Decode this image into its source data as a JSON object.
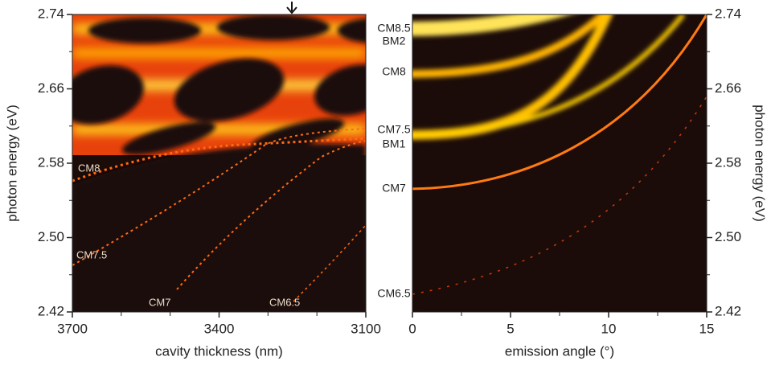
{
  "chart_data": [
    {
      "type": "heatmap",
      "xlabel": "cavity thickness (nm)",
      "ylabel": "photon energy (eV)",
      "xlim": [
        3700,
        3100
      ],
      "xticks": [
        3700,
        3400,
        3100
      ],
      "xminorticks": [
        3600,
        3500,
        3300,
        3200
      ],
      "ylim": [
        2.42,
        2.74
      ],
      "yticks": [
        2.42,
        {
          "value": 2.5,
          "label": "2.50"
        },
        2.58,
        2.66,
        2.74
      ],
      "yminorticks": [
        2.46,
        2.54,
        2.62,
        2.7
      ],
      "annotations": [
        "CM8",
        "CM7.5",
        "CM7",
        "CM6.5"
      ]
    },
    {
      "type": "heatmap",
      "xlabel": "emission angle (°)",
      "ylabel": "photon energy (eV)",
      "xlim": [
        0,
        15
      ],
      "xticks": [
        0,
        5,
        10,
        15
      ],
      "xminorticks": [
        2.5,
        7.5,
        12.5
      ],
      "ylim": [
        2.42,
        2.74
      ],
      "yticks": [
        2.42,
        {
          "value": 2.5,
          "label": "2.50"
        },
        2.58,
        2.66,
        2.74
      ],
      "yminorticks": [
        2.46,
        2.54,
        2.62,
        2.7
      ],
      "annotations": [
        "CM8.5",
        "BM2",
        "CM8",
        "CM7.5",
        "BM1",
        "CM7",
        "CM6.5"
      ]
    }
  ]
}
